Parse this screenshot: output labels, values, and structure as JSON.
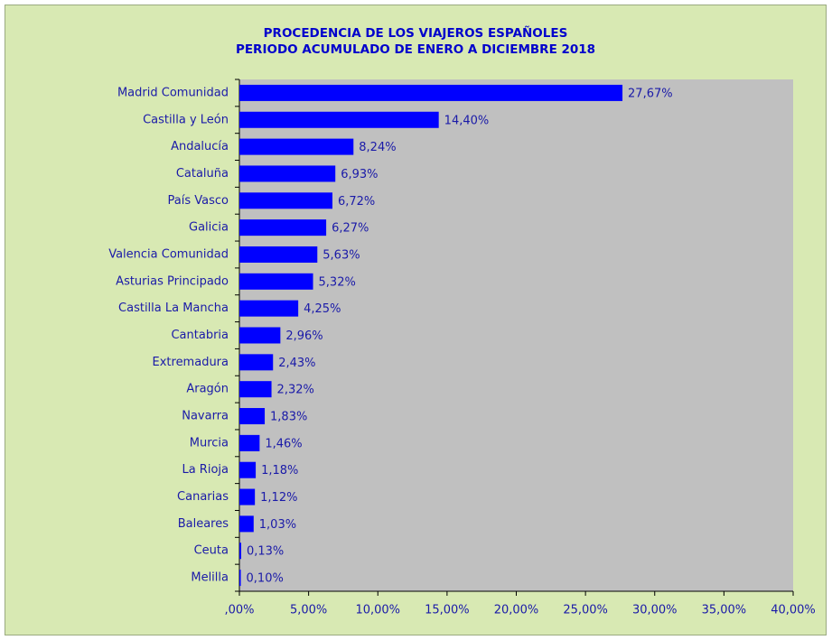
{
  "chart_data": {
    "type": "bar",
    "orientation": "horizontal",
    "title": "PROCEDENCIA DE LOS VIAJEROS ESPAÑOLES",
    "subtitle": "PERIODO ACUMULADO DE ENERO A DICIEMBRE 2018",
    "categories": [
      "Madrid Comunidad",
      "Castilla y León",
      "Andalucía",
      "Cataluña",
      "País Vasco",
      "Galicia",
      "Valencia Comunidad",
      "Asturias Principado",
      "Castilla La Mancha",
      "Cantabria",
      "Extremadura",
      "Aragón",
      "Navarra",
      "Murcia",
      "La Rioja",
      "Canarias",
      "Baleares",
      "Ceuta",
      "Melilla"
    ],
    "values": [
      27.67,
      14.4,
      8.24,
      6.93,
      6.72,
      6.27,
      5.63,
      5.32,
      4.25,
      2.96,
      2.43,
      2.32,
      1.83,
      1.46,
      1.18,
      1.12,
      1.03,
      0.13,
      0.1
    ],
    "value_labels": [
      "27,67%",
      "14,40%",
      "8,24%",
      "6,93%",
      "6,72%",
      "6,27%",
      "5,63%",
      "5,32%",
      "4,25%",
      "2,96%",
      "2,43%",
      "2,32%",
      "1,83%",
      "1,46%",
      "1,18%",
      "1,12%",
      "1,03%",
      "0,13%",
      "0,10%"
    ],
    "color": "#0000ff",
    "xlim": [
      0,
      40
    ],
    "xticks": [
      {
        "value": 0,
        "label": ",00%"
      },
      {
        "value": 5,
        "label": "5,00%"
      },
      {
        "value": 10,
        "label": "10,00%"
      },
      {
        "value": 15,
        "label": "15,00%"
      },
      {
        "value": 20,
        "label": "20,00%"
      },
      {
        "value": 25,
        "label": "25,00%"
      },
      {
        "value": 30,
        "label": "30,00%"
      },
      {
        "value": 35,
        "label": "35,00%"
      },
      {
        "value": 40,
        "label": "40,00%"
      }
    ],
    "grid": false
  }
}
